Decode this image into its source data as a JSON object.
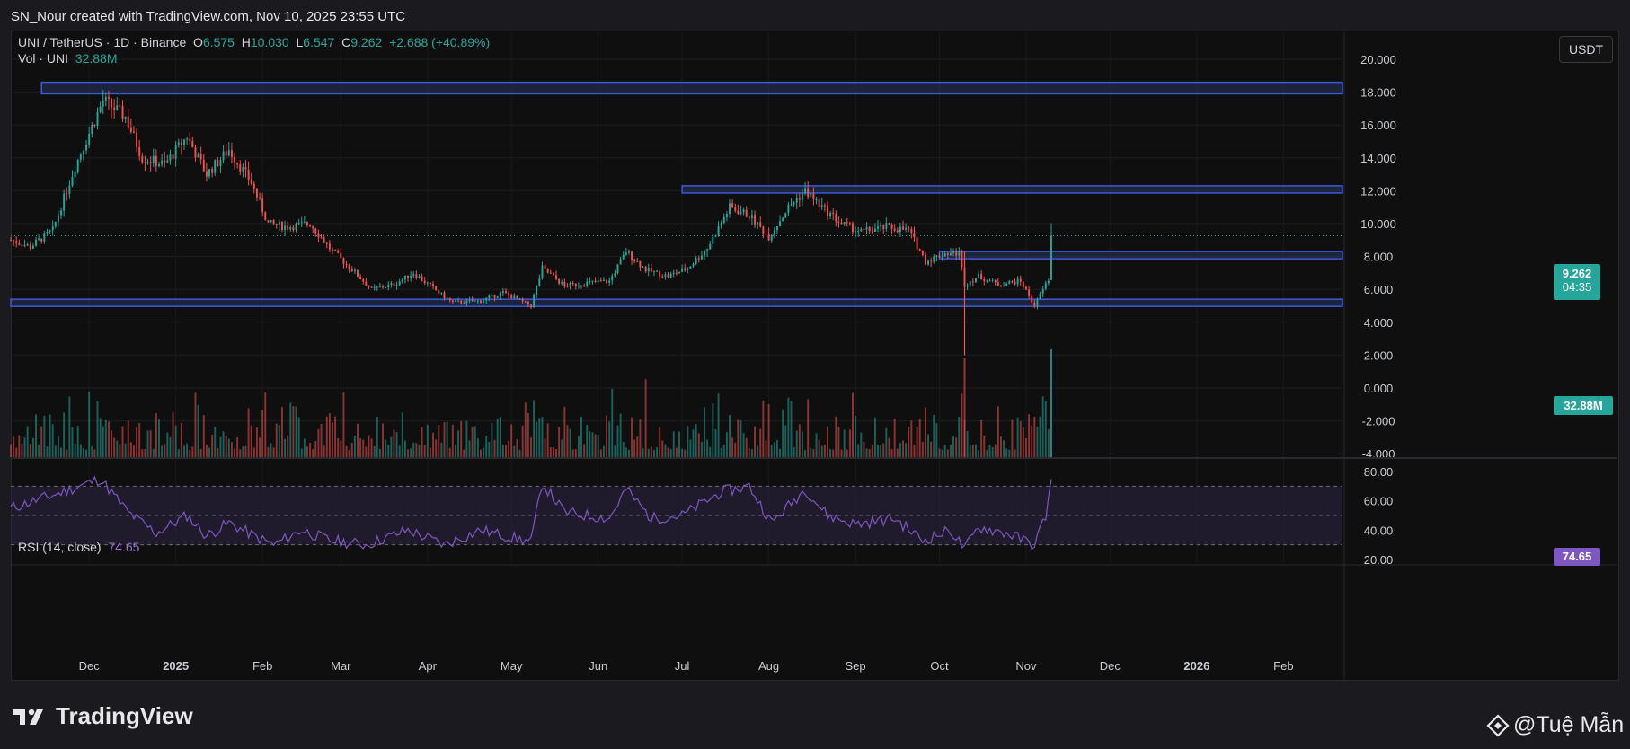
{
  "attribution": "SN_Nour created with TradingView.com, Nov 10, 2025 23:55 UTC",
  "legend": {
    "symbol": "UNI / TetherUS · 1D · Binance",
    "o_label": "O",
    "o_value": "6.575",
    "h_label": "H",
    "h_value": "10.030",
    "l_label": "L",
    "l_value": "6.547",
    "c_label": "C",
    "c_value": "9.262",
    "change": "+2.688 (+40.89%)",
    "vol_label": "Vol · UNI",
    "vol_value": "32.88M",
    "rsi_label": "RSI (14, close)",
    "rsi_value": "74.65"
  },
  "currency_button": "USDT",
  "last_price": {
    "price": "9.262",
    "countdown": "04:35"
  },
  "last_volume": "32.88M",
  "last_rsi": "74.65",
  "branding": {
    "logo_text": "TradingView",
    "user_name": "@Tuệ Mẫn"
  },
  "colors": {
    "up": "#26a69a",
    "down": "#ef5350",
    "zone_fill": "#2a3560",
    "zone_border": "#3a5bd9",
    "rsi_line": "#7e57c2",
    "rsi_band": "#2a2340"
  },
  "chart_data": {
    "type": "candlestick",
    "symbol": "UNI / TetherUS",
    "interval": "1D",
    "exchange": "Binance",
    "price_axis": {
      "ticks": [
        "20.000",
        "18.000",
        "16.000",
        "14.000",
        "12.000",
        "10.000",
        "8.000",
        "6.000",
        "4.000",
        "2.000",
        "0.000",
        "-2.000",
        "-4.000"
      ],
      "range": [
        -4,
        20
      ]
    },
    "rsi_axis": {
      "ticks": [
        "80.00",
        "60.00",
        "40.00",
        "20.00"
      ],
      "range": [
        20,
        80
      ],
      "bands": [
        30,
        50,
        70
      ]
    },
    "time_axis": {
      "labels": [
        "Dec",
        "2025",
        "Feb",
        "Mar",
        "Apr",
        "May",
        "Jun",
        "Jul",
        "Aug",
        "Sep",
        "Oct",
        "Nov",
        "Dec",
        "2026",
        "Feb"
      ],
      "bold": [
        "2025",
        "2026"
      ]
    },
    "horizontal_zones": [
      {
        "from_date": "2024-11-14",
        "to_date": "2026-02-28",
        "low": 17.9,
        "high": 18.6
      },
      {
        "from_date": "2025-07-01",
        "to_date": "2026-02-25",
        "low": 11.9,
        "high": 12.3
      },
      {
        "from_date": "2025-10-01",
        "to_date": "2026-02-30",
        "low": 8.0,
        "high": 8.3
      },
      {
        "from_date": "2024-11-03",
        "to_date": "2026-02-28",
        "low": 5.0,
        "high": 5.4
      }
    ],
    "price_path": [
      [
        "2024-11-03",
        9.0
      ],
      [
        "2024-11-10",
        8.6
      ],
      [
        "2024-11-18",
        9.6
      ],
      [
        "2024-11-26",
        13.5
      ],
      [
        "2024-12-01",
        15.5
      ],
      [
        "2024-12-06",
        17.5
      ],
      [
        "2024-12-10",
        17.0
      ],
      [
        "2024-12-14",
        16.5
      ],
      [
        "2024-12-20",
        14.0
      ],
      [
        "2024-12-28",
        13.6
      ],
      [
        "2025-01-05",
        15.3
      ],
      [
        "2025-01-12",
        13.0
      ],
      [
        "2025-01-20",
        14.5
      ],
      [
        "2025-01-28",
        12.5
      ],
      [
        "2025-02-03",
        10.0
      ],
      [
        "2025-02-10",
        9.8
      ],
      [
        "2025-02-18",
        10.0
      ],
      [
        "2025-02-25",
        8.5
      ],
      [
        "2025-03-05",
        7.2
      ],
      [
        "2025-03-12",
        6.0
      ],
      [
        "2025-03-20",
        6.3
      ],
      [
        "2025-03-27",
        7.0
      ],
      [
        "2025-04-05",
        5.8
      ],
      [
        "2025-04-10",
        5.2
      ],
      [
        "2025-04-20",
        5.3
      ],
      [
        "2025-04-28",
        5.8
      ],
      [
        "2025-05-08",
        5.0
      ],
      [
        "2025-05-12",
        7.3
      ],
      [
        "2025-05-20",
        6.2
      ],
      [
        "2025-05-28",
        6.4
      ],
      [
        "2025-06-05",
        6.5
      ],
      [
        "2025-06-11",
        8.3
      ],
      [
        "2025-06-18",
        7.2
      ],
      [
        "2025-06-26",
        6.8
      ],
      [
        "2025-07-03",
        7.3
      ],
      [
        "2025-07-10",
        8.5
      ],
      [
        "2025-07-18",
        11.0
      ],
      [
        "2025-07-25",
        10.5
      ],
      [
        "2025-08-01",
        9.2
      ],
      [
        "2025-08-08",
        11.0
      ],
      [
        "2025-08-14",
        12.0
      ],
      [
        "2025-08-20",
        11.0
      ],
      [
        "2025-08-27",
        10.0
      ],
      [
        "2025-09-03",
        9.5
      ],
      [
        "2025-09-12",
        9.8
      ],
      [
        "2025-09-20",
        9.6
      ],
      [
        "2025-09-26",
        7.7
      ],
      [
        "2025-10-03",
        8.2
      ],
      [
        "2025-10-08",
        8.2
      ],
      [
        "2025-10-10",
        6.3
      ],
      [
        "2025-10-15",
        6.8
      ],
      [
        "2025-10-22",
        6.3
      ],
      [
        "2025-10-30",
        6.5
      ],
      [
        "2025-11-04",
        5.0
      ],
      [
        "2025-11-07",
        6.0
      ],
      [
        "2025-11-09",
        6.6
      ],
      [
        "2025-11-10",
        9.262
      ]
    ],
    "last_candle": {
      "date": "2025-11-10",
      "open": 6.575,
      "high": 10.03,
      "low": 6.547,
      "close": 9.262,
      "change": 2.688,
      "change_pct": 40.89
    },
    "volume_last": 32.88,
    "rsi_path": [
      [
        "2024-11-03",
        55
      ],
      [
        "2024-11-20",
        65
      ],
      [
        "2024-12-05",
        75
      ],
      [
        "2024-12-15",
        52
      ],
      [
        "2024-12-25",
        38
      ],
      [
        "2025-01-05",
        50
      ],
      [
        "2025-01-12",
        36
      ],
      [
        "2025-01-20",
        45
      ],
      [
        "2025-01-30",
        35
      ],
      [
        "2025-02-05",
        30
      ],
      [
        "2025-02-15",
        40
      ],
      [
        "2025-02-25",
        33
      ],
      [
        "2025-03-10",
        30
      ],
      [
        "2025-03-25",
        40
      ],
      [
        "2025-04-07",
        30
      ],
      [
        "2025-04-20",
        40
      ],
      [
        "2025-05-08",
        32
      ],
      [
        "2025-05-12",
        72
      ],
      [
        "2025-05-20",
        52
      ],
      [
        "2025-06-05",
        48
      ],
      [
        "2025-06-11",
        68
      ],
      [
        "2025-06-20",
        48
      ],
      [
        "2025-07-01",
        50
      ],
      [
        "2025-07-15",
        66
      ],
      [
        "2025-07-25",
        70
      ],
      [
        "2025-08-02",
        45
      ],
      [
        "2025-08-14",
        68
      ],
      [
        "2025-08-22",
        50
      ],
      [
        "2025-09-01",
        44
      ],
      [
        "2025-09-15",
        48
      ],
      [
        "2025-09-25",
        33
      ],
      [
        "2025-10-05",
        40
      ],
      [
        "2025-10-10",
        27
      ],
      [
        "2025-10-15",
        42
      ],
      [
        "2025-10-25",
        38
      ],
      [
        "2025-11-04",
        30
      ],
      [
        "2025-11-08",
        50
      ],
      [
        "2025-11-10",
        74.65
      ]
    ],
    "rsi_last": 74.65
  }
}
